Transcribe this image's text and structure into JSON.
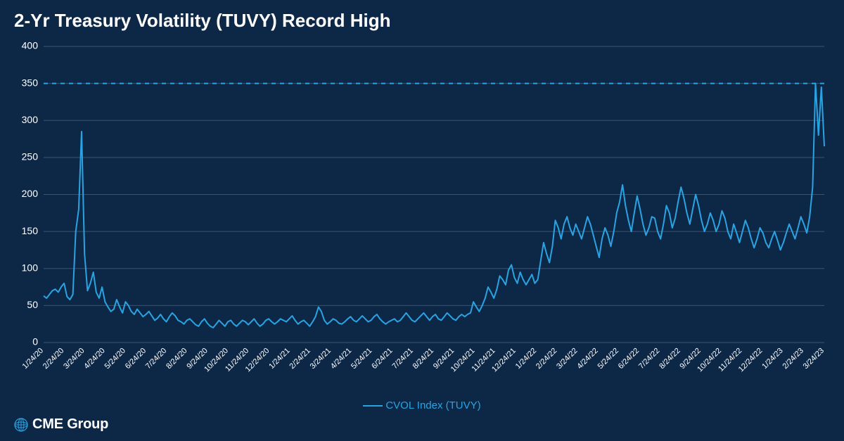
{
  "title": "2-Yr Treasury Volatility (TUVY) Record High",
  "chart": {
    "type": "line",
    "background_color": "#0d2847",
    "grid_color": "#3a5470",
    "reference_line": {
      "value": 350,
      "color": "#2aa3e3",
      "dash": "6,6"
    },
    "series": {
      "name": "CVOL Index (TUVY)",
      "color": "#2aa3e3",
      "line_width": 2
    },
    "y_axis": {
      "min": 0,
      "max": 400,
      "ticks": [
        0,
        50,
        100,
        150,
        200,
        250,
        300,
        350,
        400
      ],
      "label_color": "#ffffff",
      "label_fontsize": 14
    },
    "x_axis": {
      "labels": [
        "1/24/20",
        "2/24/20",
        "3/24/20",
        "4/24/20",
        "5/24/20",
        "6/24/20",
        "7/24/20",
        "8/24/20",
        "9/24/20",
        "10/24/20",
        "11/24/20",
        "12/24/20",
        "1/24/21",
        "2/24/21",
        "3/24/21",
        "4/24/21",
        "5/24/21",
        "6/24/21",
        "7/24/21",
        "8/24/21",
        "9/24/21",
        "10/24/21",
        "11/24/21",
        "12/24/21",
        "1/24/22",
        "2/24/22",
        "3/24/22",
        "4/24/22",
        "5/24/22",
        "6/24/22",
        "7/24/22",
        "8/24/22",
        "9/24/22",
        "10/24/22",
        "11/24/22",
        "12/24/22",
        "1/24/23",
        "2/24/23",
        "3/24/23"
      ],
      "label_color": "#ffffff",
      "label_fontsize": 11,
      "label_rotation": -45
    },
    "data": [
      63,
      60,
      65,
      70,
      72,
      68,
      75,
      80,
      62,
      58,
      65,
      150,
      180,
      285,
      120,
      70,
      80,
      95,
      68,
      60,
      75,
      55,
      48,
      42,
      45,
      58,
      48,
      40,
      55,
      50,
      42,
      38,
      45,
      40,
      35,
      38,
      42,
      36,
      30,
      33,
      38,
      32,
      28,
      35,
      40,
      36,
      30,
      28,
      25,
      30,
      32,
      28,
      24,
      22,
      28,
      32,
      26,
      22,
      20,
      25,
      30,
      26,
      22,
      28,
      30,
      25,
      22,
      26,
      30,
      28,
      24,
      28,
      32,
      26,
      22,
      25,
      30,
      32,
      28,
      25,
      28,
      32,
      30,
      28,
      32,
      36,
      30,
      25,
      28,
      30,
      26,
      22,
      28,
      35,
      48,
      42,
      30,
      25,
      28,
      32,
      30,
      26,
      25,
      28,
      32,
      35,
      30,
      28,
      32,
      36,
      32,
      28,
      30,
      35,
      38,
      32,
      28,
      25,
      28,
      30,
      32,
      28,
      30,
      35,
      40,
      35,
      30,
      28,
      32,
      36,
      40,
      35,
      30,
      35,
      38,
      32,
      30,
      35,
      40,
      36,
      32,
      30,
      35,
      38,
      35,
      38,
      40,
      55,
      48,
      42,
      50,
      60,
      75,
      68,
      60,
      72,
      90,
      85,
      78,
      98,
      105,
      88,
      80,
      95,
      85,
      78,
      85,
      92,
      80,
      85,
      110,
      135,
      120,
      108,
      130,
      165,
      155,
      140,
      160,
      170,
      155,
      145,
      160,
      150,
      140,
      155,
      170,
      160,
      145,
      130,
      115,
      140,
      155,
      145,
      130,
      150,
      175,
      190,
      213,
      185,
      165,
      150,
      175,
      198,
      180,
      160,
      145,
      155,
      170,
      168,
      150,
      140,
      160,
      185,
      175,
      155,
      168,
      190,
      210,
      195,
      175,
      160,
      180,
      200,
      185,
      165,
      150,
      160,
      175,
      165,
      150,
      160,
      178,
      168,
      150,
      140,
      160,
      148,
      135,
      150,
      165,
      155,
      140,
      128,
      140,
      155,
      148,
      135,
      128,
      140,
      150,
      138,
      125,
      135,
      148,
      160,
      150,
      140,
      155,
      170,
      160,
      148,
      170,
      210,
      350,
      280,
      345,
      265
    ]
  },
  "legend": {
    "label": "CVOL Index (TUVY)",
    "color": "#2aa3e3"
  },
  "logo": {
    "text": "CME Group",
    "globe_color": "#2aa3e3",
    "text_color": "#ffffff"
  }
}
